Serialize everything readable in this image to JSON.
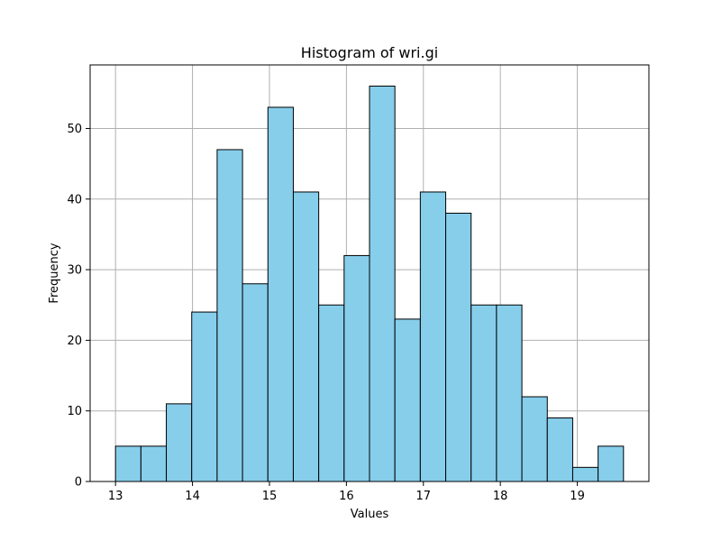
{
  "chart_data": {
    "type": "bar",
    "title": "Histogram of wri.gi",
    "xlabel": "Values",
    "ylabel": "Frequency",
    "bin_start": 13.0,
    "bin_width": 0.33,
    "values": [
      5,
      5,
      11,
      24,
      47,
      28,
      53,
      41,
      25,
      32,
      56,
      23,
      41,
      38,
      25,
      25,
      12,
      9,
      2,
      5
    ],
    "xlim": [
      12.67,
      19.93
    ],
    "ylim": [
      0,
      59
    ],
    "xticks": [
      13,
      14,
      15,
      16,
      17,
      18,
      19
    ],
    "yticks": [
      0,
      10,
      20,
      30,
      40,
      50
    ],
    "grid": true,
    "bar_color": "#87CEEB",
    "edge_color": "#000000"
  }
}
